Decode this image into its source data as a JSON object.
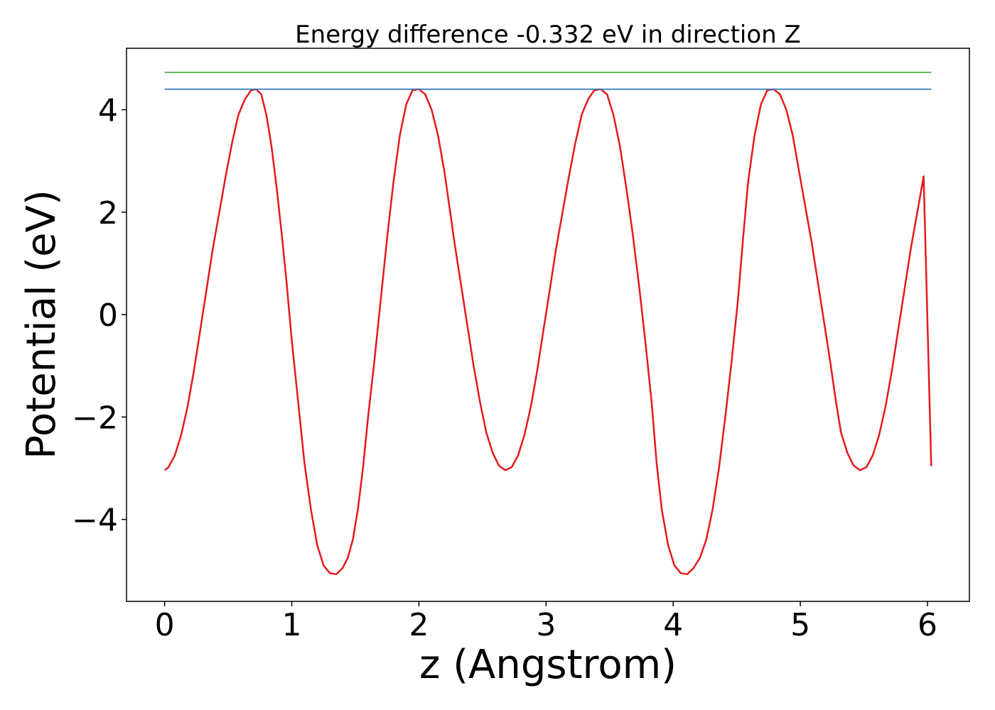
{
  "chart_data": {
    "type": "line",
    "title": "Energy difference -0.332 eV in direction Z",
    "xlabel": "z (Angstrom)",
    "ylabel": "Potential (eV)",
    "xlim": [
      -0.3,
      6.33
    ],
    "ylim": [
      -5.6,
      5.2
    ],
    "xticks": [
      0,
      1,
      2,
      3,
      4,
      5,
      6
    ],
    "xtick_labels": [
      "0",
      "1",
      "2",
      "3",
      "4",
      "5",
      "6"
    ],
    "yticks": [
      -4,
      -2,
      0,
      2,
      4
    ],
    "ytick_labels": [
      "−4",
      "−2",
      "0",
      "2",
      "4"
    ],
    "grid": false,
    "legend": "none",
    "series": [
      {
        "color": "#e41a1c",
        "x": [
          0,
          0.03,
          0.08,
          0.13,
          0.18,
          0.23,
          0.28,
          0.33,
          0.38,
          0.43,
          0.48,
          0.53,
          0.58,
          0.63,
          0.68,
          0.72,
          0.76,
          0.8,
          0.84,
          0.88,
          0.92,
          0.96,
          1.0,
          1.05,
          1.1,
          1.15,
          1.2,
          1.25,
          1.3,
          1.35,
          1.4,
          1.44,
          1.48,
          1.52,
          1.56,
          1.6,
          1.65,
          1.7,
          1.75,
          1.8,
          1.85,
          1.9,
          1.95,
          2.0,
          2.05,
          2.1,
          2.15,
          2.2,
          2.24,
          2.28,
          2.33,
          2.38,
          2.43,
          2.48,
          2.53,
          2.58,
          2.63,
          2.68,
          2.73,
          2.78,
          2.83,
          2.88,
          2.93,
          2.98,
          3.03,
          3.08,
          3.13,
          3.18,
          3.23,
          3.28,
          3.33,
          3.38,
          3.43,
          3.48,
          3.53,
          3.58,
          3.63,
          3.68,
          3.73,
          3.78,
          3.83,
          3.87,
          3.91,
          3.96,
          4.01,
          4.06,
          4.11,
          4.16,
          4.21,
          4.26,
          4.31,
          4.36,
          4.41,
          4.46,
          4.51,
          4.55,
          4.59,
          4.64,
          4.69,
          4.74,
          4.79,
          4.84,
          4.89,
          4.94,
          4.99,
          5.04,
          5.09,
          5.14,
          5.19,
          5.24,
          5.28,
          5.32,
          5.37,
          5.42,
          5.47,
          5.52,
          5.57,
          5.62,
          5.67,
          5.72,
          5.77,
          5.82,
          5.87,
          5.92,
          5.97,
          6.03
        ],
        "y": [
          -3.04,
          -2.98,
          -2.75,
          -2.35,
          -1.8,
          -1.1,
          -0.3,
          0.5,
          1.3,
          2.0,
          2.7,
          3.35,
          3.9,
          4.2,
          4.38,
          4.4,
          4.3,
          3.9,
          3.3,
          2.5,
          1.6,
          0.6,
          -0.5,
          -1.7,
          -2.9,
          -3.8,
          -4.5,
          -4.9,
          -5.05,
          -5.07,
          -4.95,
          -4.75,
          -4.4,
          -3.8,
          -3.0,
          -2.0,
          -0.9,
          0.3,
          1.5,
          2.6,
          3.5,
          4.1,
          4.38,
          4.4,
          4.3,
          4.0,
          3.5,
          2.8,
          2.1,
          1.4,
          0.6,
          -0.2,
          -1.0,
          -1.7,
          -2.3,
          -2.7,
          -2.95,
          -3.04,
          -2.98,
          -2.75,
          -2.35,
          -1.8,
          -1.1,
          -0.3,
          0.5,
          1.3,
          2.0,
          2.7,
          3.35,
          3.9,
          4.2,
          4.38,
          4.4,
          4.3,
          3.9,
          3.3,
          2.5,
          1.6,
          0.6,
          -0.5,
          -1.7,
          -2.9,
          -3.8,
          -4.5,
          -4.9,
          -5.05,
          -5.07,
          -4.95,
          -4.75,
          -4.4,
          -3.8,
          -3.0,
          -2.0,
          -0.9,
          0.3,
          1.5,
          2.6,
          3.5,
          4.1,
          4.38,
          4.4,
          4.3,
          4.0,
          3.5,
          2.8,
          2.1,
          1.4,
          0.6,
          -0.2,
          -1.0,
          -1.7,
          -2.3,
          -2.7,
          -2.95,
          -3.04,
          -2.98,
          -2.75,
          -2.35,
          -1.8,
          -1.1,
          -0.3,
          0.5,
          1.3,
          2.0,
          2.7,
          -2.96
        ]
      },
      {
        "color": "#377eb8",
        "x": [
          0,
          6.03
        ],
        "y": [
          4.4,
          4.4
        ]
      },
      {
        "color": "#4daf4a",
        "x": [
          0,
          6.03
        ],
        "y": [
          4.73,
          4.73
        ]
      }
    ]
  }
}
